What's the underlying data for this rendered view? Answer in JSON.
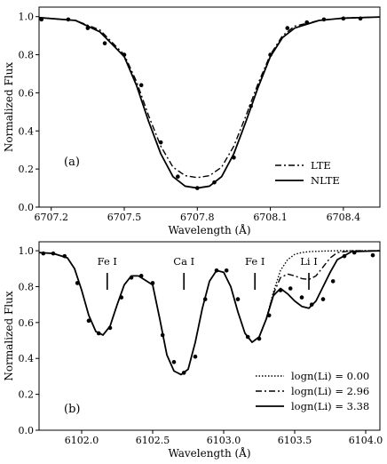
{
  "chart_data": [
    {
      "panel": "(a)",
      "type": "line",
      "xlabel": "Wavelength (Å)",
      "ylabel": "Normalized Flux",
      "xlim": [
        6707.15,
        6708.55
      ],
      "ylim": [
        0.0,
        1.05
      ],
      "xticks": [
        6707.2,
        6707.5,
        6707.8,
        6708.1,
        6708.4
      ],
      "xtick_labels": [
        "6707.2",
        "6707.5",
        "6707.8",
        "6708.1",
        "6708.4"
      ],
      "yticks": [
        0.0,
        0.2,
        0.4,
        0.6,
        0.8,
        1.0
      ],
      "ytick_labels": [
        "0.0",
        "0.2",
        "0.4",
        "0.6",
        "0.8",
        "1.0"
      ],
      "legend_position": "bottom-right",
      "series": [
        {
          "name": "LTE",
          "style": "dashdot",
          "x": [
            6707.15,
            6707.3,
            6707.4,
            6707.5,
            6707.55,
            6707.6,
            6707.65,
            6707.7,
            6707.75,
            6707.8,
            6707.85,
            6707.9,
            6707.95,
            6708.0,
            6708.05,
            6708.1,
            6708.15,
            6708.2,
            6708.3,
            6708.4,
            6708.55
          ],
          "y": [
            0.995,
            0.98,
            0.93,
            0.8,
            0.66,
            0.48,
            0.32,
            0.21,
            0.165,
            0.155,
            0.165,
            0.21,
            0.32,
            0.48,
            0.65,
            0.8,
            0.9,
            0.95,
            0.98,
            0.993,
            0.998
          ]
        },
        {
          "name": "NLTE",
          "style": "solid",
          "x": [
            6707.15,
            6707.3,
            6707.4,
            6707.5,
            6707.55,
            6707.6,
            6707.65,
            6707.7,
            6707.75,
            6707.8,
            6707.85,
            6707.9,
            6707.95,
            6708.0,
            6708.05,
            6708.1,
            6708.15,
            6708.2,
            6708.3,
            6708.4,
            6708.55
          ],
          "y": [
            0.995,
            0.98,
            0.92,
            0.79,
            0.64,
            0.45,
            0.28,
            0.16,
            0.11,
            0.1,
            0.11,
            0.16,
            0.28,
            0.45,
            0.63,
            0.79,
            0.89,
            0.94,
            0.98,
            0.992,
            0.998
          ]
        }
      ],
      "observed": {
        "x": [
          6707.16,
          6707.27,
          6707.35,
          6707.42,
          6707.5,
          6707.57,
          6707.65,
          6707.72,
          6707.8,
          6707.87,
          6707.95,
          6708.02,
          6708.1,
          6708.17,
          6708.25,
          6708.32,
          6708.4,
          6708.47
        ],
        "y": [
          0.985,
          0.985,
          0.94,
          0.86,
          0.8,
          0.64,
          0.34,
          0.16,
          0.1,
          0.13,
          0.26,
          0.53,
          0.8,
          0.94,
          0.97,
          0.985,
          0.99,
          0.99
        ]
      }
    },
    {
      "panel": "(b)",
      "type": "line",
      "xlabel": "Wavelength (Å)",
      "ylabel": "Normalized Flux",
      "xlim": [
        6101.7,
        6104.1
      ],
      "ylim": [
        0.0,
        1.05
      ],
      "xticks": [
        6102.0,
        6102.5,
        6103.0,
        6103.5,
        6104.0
      ],
      "xtick_labels": [
        "6102.0",
        "6102.5",
        "6103.0",
        "6103.5",
        "6104.0"
      ],
      "yticks": [
        0.0,
        0.2,
        0.4,
        0.6,
        0.8,
        1.0
      ],
      "ytick_labels": [
        "0.0",
        "0.2",
        "0.4",
        "0.6",
        "0.8",
        "1.0"
      ],
      "legend_position": "bottom-right",
      "line_ids": [
        {
          "label": "Fe I",
          "x": 6102.18
        },
        {
          "label": "Ca I",
          "x": 6102.72
        },
        {
          "label": "Fe I",
          "x": 6103.22
        },
        {
          "label": "Li I",
          "x": 6103.6
        }
      ],
      "series": [
        {
          "name": "logn(Li) = 0.00",
          "style": "dotted",
          "x": [
            6103.2,
            6103.25,
            6103.3,
            6103.35,
            6103.4,
            6103.45,
            6103.5,
            6103.55,
            6103.6,
            6103.7,
            6103.8,
            6103.9,
            6104.1
          ],
          "y": [
            0.49,
            0.52,
            0.62,
            0.77,
            0.89,
            0.95,
            0.98,
            0.99,
            0.995,
            0.998,
            1.0,
            1.0,
            1.0
          ]
        },
        {
          "name": "logn(Li) = 2.96",
          "style": "dashdot",
          "x": [
            6103.2,
            6103.25,
            6103.3,
            6103.35,
            6103.4,
            6103.45,
            6103.5,
            6103.55,
            6103.6,
            6103.65,
            6103.7,
            6103.75,
            6103.8,
            6103.9,
            6104.1
          ],
          "y": [
            0.49,
            0.52,
            0.62,
            0.76,
            0.85,
            0.87,
            0.86,
            0.845,
            0.84,
            0.86,
            0.91,
            0.96,
            0.99,
            1.0,
            1.0
          ]
        },
        {
          "name": "logn(Li) = 3.38",
          "style": "solid",
          "x": [
            6101.7,
            6101.8,
            6101.9,
            6101.95,
            6102.0,
            6102.05,
            6102.1,
            6102.15,
            6102.2,
            6102.25,
            6102.3,
            6102.35,
            6102.4,
            6102.5,
            6102.55,
            6102.6,
            6102.65,
            6102.7,
            6102.75,
            6102.8,
            6102.85,
            6102.9,
            6102.95,
            6103.0,
            6103.05,
            6103.1,
            6103.15,
            6103.2,
            6103.25,
            6103.3,
            6103.35,
            6103.4,
            6103.45,
            6103.5,
            6103.55,
            6103.6,
            6103.65,
            6103.7,
            6103.75,
            6103.8,
            6103.9,
            6104.1
          ],
          "y": [
            0.99,
            0.985,
            0.96,
            0.9,
            0.78,
            0.64,
            0.55,
            0.53,
            0.58,
            0.7,
            0.81,
            0.86,
            0.86,
            0.81,
            0.62,
            0.42,
            0.33,
            0.31,
            0.34,
            0.49,
            0.68,
            0.83,
            0.89,
            0.88,
            0.8,
            0.66,
            0.54,
            0.49,
            0.52,
            0.62,
            0.75,
            0.79,
            0.76,
            0.72,
            0.69,
            0.68,
            0.72,
            0.8,
            0.88,
            0.95,
            0.995,
            1.0
          ]
        }
      ],
      "observed": {
        "x": [
          6101.73,
          6101.8,
          6101.88,
          6101.97,
          6102.05,
          6102.12,
          6102.2,
          6102.28,
          6102.35,
          6102.42,
          6102.5,
          6102.57,
          6102.65,
          6102.72,
          6102.8,
          6102.87,
          6102.95,
          6103.02,
          6103.1,
          6103.17,
          6103.25,
          6103.32,
          6103.4,
          6103.47,
          6103.55,
          6103.62,
          6103.7,
          6103.77,
          6103.85,
          6103.92,
          6104.05
        ],
        "y": [
          0.985,
          0.985,
          0.97,
          0.82,
          0.61,
          0.54,
          0.57,
          0.74,
          0.85,
          0.86,
          0.82,
          0.53,
          0.38,
          0.32,
          0.41,
          0.73,
          0.89,
          0.89,
          0.73,
          0.52,
          0.51,
          0.64,
          0.78,
          0.79,
          0.74,
          0.7,
          0.73,
          0.83,
          0.97,
          0.99,
          0.975
        ]
      }
    }
  ]
}
